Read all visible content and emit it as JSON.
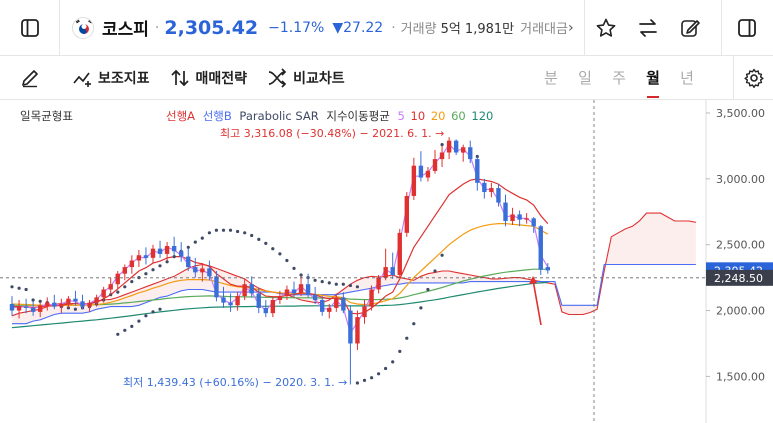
{
  "ticker": {
    "name": "코스피",
    "price": "2,305.42",
    "change_pct": "−1.17%",
    "change_val": "▼27.22",
    "volume_label": "거래량",
    "volume_value": "5억 1,981만",
    "amount_label": "거래대금"
  },
  "toolbar": {
    "indicators_label": "보조지표",
    "strategy_label": "매매전략",
    "compare_label": "비교차트",
    "periods": [
      "분",
      "일",
      "주",
      "월",
      "년"
    ],
    "active_period": "월"
  },
  "legend": {
    "ichimoku": "일목균형표",
    "span_a": "선행A",
    "span_b": "선행B",
    "psar": "Parabolic SAR",
    "ema_label": "지수이동평균",
    "ema_periods": [
      "5",
      "10",
      "20",
      "60",
      "120"
    ]
  },
  "colors": {
    "up": "#e03131",
    "down": "#3b6fd8",
    "ema5": "#c77dff",
    "ema10": "#e03131",
    "ema20": "#f39c12",
    "ema60": "#5aab5a",
    "ema120": "#1f8a70",
    "span_a": "#e03131",
    "span_b": "#4c6ef5",
    "psar": "#3f4a66"
  },
  "chart_data": {
    "type": "line",
    "title": "코스피",
    "ylim": [
      1300,
      3600
    ],
    "y_ticks": [
      "3,500.00",
      "3,000.00",
      "2,500.00",
      "2,000.00",
      "1,500.00"
    ],
    "y_tick_values": [
      3500,
      3000,
      2500,
      2000,
      1500
    ],
    "current_price": 2305.42,
    "current_price_label": "2,305.42",
    "crosshair_value": 2248.5,
    "crosshair_label": "2,248.50",
    "annotations": {
      "high": "최고 3,316.08 (−30.48%) − 2021. 6. 1. →",
      "low": "최저 1,439.43 (+60.16%) − 2020. 3. 1. →"
    },
    "candles": [
      {
        "o": 2050,
        "h": 2110,
        "l": 1960,
        "c": 2000
      },
      {
        "o": 2000,
        "h": 2080,
        "l": 1940,
        "c": 2030
      },
      {
        "o": 2030,
        "h": 2090,
        "l": 1980,
        "c": 2020
      },
      {
        "o": 2020,
        "h": 2070,
        "l": 1960,
        "c": 1990
      },
      {
        "o": 1990,
        "h": 2060,
        "l": 1950,
        "c": 2040
      },
      {
        "o": 2040,
        "h": 2100,
        "l": 2000,
        "c": 2060
      },
      {
        "o": 2060,
        "h": 2120,
        "l": 2010,
        "c": 2030
      },
      {
        "o": 2030,
        "h": 2090,
        "l": 1980,
        "c": 2050
      },
      {
        "o": 2050,
        "h": 2110,
        "l": 2020,
        "c": 2090
      },
      {
        "o": 2090,
        "h": 2150,
        "l": 2040,
        "c": 2070
      },
      {
        "o": 2070,
        "h": 2120,
        "l": 2010,
        "c": 2030
      },
      {
        "o": 2030,
        "h": 2080,
        "l": 1990,
        "c": 2060
      },
      {
        "o": 2060,
        "h": 2120,
        "l": 2030,
        "c": 2100
      },
      {
        "o": 2100,
        "h": 2180,
        "l": 2060,
        "c": 2160
      },
      {
        "o": 2160,
        "h": 2250,
        "l": 2120,
        "c": 2200
      },
      {
        "o": 2200,
        "h": 2300,
        "l": 2160,
        "c": 2280
      },
      {
        "o": 2280,
        "h": 2350,
        "l": 2230,
        "c": 2330
      },
      {
        "o": 2330,
        "h": 2420,
        "l": 2280,
        "c": 2380
      },
      {
        "o": 2380,
        "h": 2460,
        "l": 2330,
        "c": 2420
      },
      {
        "o": 2420,
        "h": 2480,
        "l": 2350,
        "c": 2400
      },
      {
        "o": 2400,
        "h": 2500,
        "l": 2360,
        "c": 2470
      },
      {
        "o": 2470,
        "h": 2530,
        "l": 2400,
        "c": 2430
      },
      {
        "o": 2430,
        "h": 2520,
        "l": 2380,
        "c": 2490
      },
      {
        "o": 2490,
        "h": 2560,
        "l": 2420,
        "c": 2450
      },
      {
        "o": 2450,
        "h": 2520,
        "l": 2370,
        "c": 2410
      },
      {
        "o": 2410,
        "h": 2470,
        "l": 2300,
        "c": 2330
      },
      {
        "o": 2330,
        "h": 2400,
        "l": 2250,
        "c": 2290
      },
      {
        "o": 2290,
        "h": 2360,
        "l": 2220,
        "c": 2320
      },
      {
        "o": 2320,
        "h": 2380,
        "l": 2230,
        "c": 2260
      },
      {
        "o": 2260,
        "h": 2300,
        "l": 2070,
        "c": 2100
      },
      {
        "o": 2100,
        "h": 2180,
        "l": 2020,
        "c": 2060
      },
      {
        "o": 2060,
        "h": 2130,
        "l": 1990,
        "c": 2040
      },
      {
        "o": 2040,
        "h": 2140,
        "l": 2000,
        "c": 2110
      },
      {
        "o": 2110,
        "h": 2240,
        "l": 2080,
        "c": 2200
      },
      {
        "o": 2200,
        "h": 2260,
        "l": 2100,
        "c": 2130
      },
      {
        "o": 2130,
        "h": 2170,
        "l": 1980,
        "c": 2020
      },
      {
        "o": 2020,
        "h": 2080,
        "l": 1950,
        "c": 1980
      },
      {
        "o": 1980,
        "h": 2100,
        "l": 1950,
        "c": 2080
      },
      {
        "o": 2080,
        "h": 2150,
        "l": 2050,
        "c": 2110
      },
      {
        "o": 2110,
        "h": 2190,
        "l": 2080,
        "c": 2160
      },
      {
        "o": 2160,
        "h": 2220,
        "l": 2100,
        "c": 2130
      },
      {
        "o": 2130,
        "h": 2260,
        "l": 2110,
        "c": 2200
      },
      {
        "o": 2200,
        "h": 2280,
        "l": 2100,
        "c": 2120
      },
      {
        "o": 2120,
        "h": 2180,
        "l": 2050,
        "c": 2080
      },
      {
        "o": 2080,
        "h": 2110,
        "l": 1960,
        "c": 1990
      },
      {
        "o": 1990,
        "h": 2050,
        "l": 1940,
        "c": 2020
      },
      {
        "o": 2020,
        "h": 2130,
        "l": 1990,
        "c": 2100
      },
      {
        "o": 2100,
        "h": 2140,
        "l": 1980,
        "c": 2000
      },
      {
        "o": 2000,
        "h": 2040,
        "l": 1439,
        "c": 1750
      },
      {
        "o": 1750,
        "h": 2000,
        "l": 1700,
        "c": 1950
      },
      {
        "o": 1950,
        "h": 2080,
        "l": 1900,
        "c": 2030
      },
      {
        "o": 2030,
        "h": 2190,
        "l": 2000,
        "c": 2160
      },
      {
        "o": 2160,
        "h": 2270,
        "l": 2130,
        "c": 2250
      },
      {
        "o": 2250,
        "h": 2470,
        "l": 2230,
        "c": 2330
      },
      {
        "o": 2330,
        "h": 2440,
        "l": 2240,
        "c": 2270
      },
      {
        "o": 2270,
        "h": 2620,
        "l": 2250,
        "c": 2590
      },
      {
        "o": 2590,
        "h": 2900,
        "l": 2560,
        "c": 2870
      },
      {
        "o": 2870,
        "h": 3160,
        "l": 2840,
        "c": 3100
      },
      {
        "o": 3100,
        "h": 3210,
        "l": 2980,
        "c": 3010
      },
      {
        "o": 3010,
        "h": 3090,
        "l": 2980,
        "c": 3060
      },
      {
        "o": 3060,
        "h": 3220,
        "l": 3040,
        "c": 3150
      },
      {
        "o": 3150,
        "h": 3250,
        "l": 3090,
        "c": 3200
      },
      {
        "o": 3200,
        "h": 3316,
        "l": 3150,
        "c": 3290
      },
      {
        "o": 3290,
        "h": 3300,
        "l": 3180,
        "c": 3200
      },
      {
        "o": 3200,
        "h": 3260,
        "l": 3130,
        "c": 3240
      },
      {
        "o": 3240,
        "h": 3290,
        "l": 3120,
        "c": 3150
      },
      {
        "o": 3150,
        "h": 3170,
        "l": 2910,
        "c": 2970
      },
      {
        "o": 2970,
        "h": 3000,
        "l": 2850,
        "c": 2900
      },
      {
        "o": 2900,
        "h": 2970,
        "l": 2860,
        "c": 2930
      },
      {
        "o": 2930,
        "h": 2960,
        "l": 2790,
        "c": 2820
      },
      {
        "o": 2820,
        "h": 2880,
        "l": 2640,
        "c": 2680
      },
      {
        "o": 2680,
        "h": 2780,
        "l": 2650,
        "c": 2730
      },
      {
        "o": 2730,
        "h": 2760,
        "l": 2640,
        "c": 2690
      },
      {
        "o": 2690,
        "h": 2740,
        "l": 2660,
        "c": 2700
      },
      {
        "o": 2700,
        "h": 2710,
        "l": 2590,
        "c": 2640
      },
      {
        "o": 2640,
        "h": 2650,
        "l": 2270,
        "c": 2310
      },
      {
        "o": 2330,
        "h": 2360,
        "l": 2280,
        "c": 2305
      }
    ],
    "psar_above_points": [
      [
        3,
        2080
      ],
      [
        4,
        2070
      ],
      [
        5,
        2060
      ],
      [
        6,
        2040
      ],
      [
        7,
        2030
      ],
      [
        8,
        2020
      ],
      [
        9,
        2010
      ],
      [
        10,
        2020
      ],
      [
        11,
        2030
      ],
      [
        12,
        2050
      ],
      [
        13,
        2080
      ],
      [
        14,
        2120
      ],
      [
        15,
        2140
      ],
      [
        16,
        2180
      ],
      [
        17,
        2220
      ],
      [
        18,
        2250
      ],
      [
        19,
        2280
      ],
      [
        20,
        2310
      ],
      [
        21,
        2340
      ],
      [
        22,
        2370
      ],
      [
        23,
        2410
      ],
      [
        24,
        2450
      ],
      [
        25,
        2480
      ],
      [
        26,
        2520
      ],
      [
        27,
        2550
      ],
      [
        28,
        2590
      ],
      [
        29,
        2610
      ],
      [
        30,
        2610
      ],
      [
        31,
        2610
      ],
      [
        32,
        2600
      ],
      [
        33,
        2590
      ],
      [
        34,
        2570
      ],
      [
        35,
        2540
      ],
      [
        36,
        2510
      ],
      [
        37,
        2470
      ],
      [
        38,
        2430
      ],
      [
        39,
        2380
      ],
      [
        40,
        2320
      ],
      [
        41,
        2270
      ],
      [
        42,
        2250
      ],
      [
        43,
        2230
      ],
      [
        44,
        2220
      ],
      [
        45,
        2210
      ],
      [
        46,
        2200
      ],
      [
        47,
        2200
      ],
      [
        48,
        2190
      ],
      [
        49,
        2180
      ],
      [
        61,
        3260
      ],
      [
        62,
        3250
      ],
      [
        63,
        3230
      ],
      [
        64,
        3210
      ],
      [
        65,
        3190
      ],
      [
        66,
        3170
      ]
    ],
    "psar_below_points": [
      [
        0,
        2180
      ],
      [
        1,
        2170
      ],
      [
        2,
        2160
      ],
      [
        15,
        1820
      ],
      [
        16,
        1850
      ],
      [
        17,
        1880
      ],
      [
        18,
        1920
      ],
      [
        19,
        1960
      ],
      [
        20,
        1990
      ],
      [
        21,
        2010
      ],
      [
        49,
        1450
      ],
      [
        50,
        1470
      ],
      [
        51,
        1490
      ],
      [
        52,
        1520
      ],
      [
        53,
        1560
      ],
      [
        54,
        1610
      ],
      [
        55,
        1690
      ],
      [
        56,
        1790
      ],
      [
        57,
        1900
      ],
      [
        58,
        2020
      ],
      [
        59,
        2160
      ],
      [
        60,
        2300
      ],
      [
        61,
        2420
      ]
    ],
    "ema5": [
      2020,
      2025,
      2030,
      2015,
      2030,
      2050,
      2040,
      2050,
      2075,
      2070,
      2040,
      2055,
      2085,
      2140,
      2185,
      2260,
      2310,
      2360,
      2405,
      2400,
      2450,
      2440,
      2480,
      2460,
      2420,
      2350,
      2300,
      2310,
      2275,
      2130,
      2080,
      2055,
      2095,
      2175,
      2140,
      2050,
      2000,
      2060,
      2100,
      2145,
      2135,
      2185,
      2130,
      2090,
      2010,
      2015,
      2080,
      2020,
      1830,
      1910,
      2000,
      2120,
      2220,
      2310,
      2280,
      2520,
      2790,
      3020,
      3020,
      3050,
      3120,
      3180,
      3260,
      3210,
      3230,
      3170,
      3010,
      2920,
      2920,
      2840,
      2710,
      2720,
      2700,
      2700,
      2660,
      2420,
      2330
    ],
    "ema10": [
      2030,
      2030,
      2030,
      2025,
      2028,
      2035,
      2035,
      2040,
      2050,
      2055,
      2050,
      2052,
      2062,
      2090,
      2120,
      2165,
      2210,
      2255,
      2300,
      2325,
      2360,
      2375,
      2400,
      2410,
      2410,
      2390,
      2365,
      2355,
      2335,
      2280,
      2240,
      2200,
      2185,
      2185,
      2175,
      2140,
      2110,
      2105,
      2105,
      2115,
      2120,
      2135,
      2130,
      2120,
      2100,
      2090,
      2095,
      2080,
      1980,
      1975,
      1985,
      2020,
      2060,
      2110,
      2140,
      2240,
      2360,
      2480,
      2560,
      2640,
      2720,
      2800,
      2880,
      2920,
      2960,
      2990,
      3000,
      2990,
      2980,
      2960,
      2920,
      2890,
      2860,
      2840,
      2800,
      2720,
      2660
    ],
    "ema20": [
      2050,
      2048,
      2046,
      2043,
      2041,
      2040,
      2039,
      2039,
      2041,
      2042,
      2041,
      2042,
      2045,
      2052,
      2063,
      2078,
      2096,
      2114,
      2135,
      2150,
      2170,
      2185,
      2205,
      2220,
      2230,
      2235,
      2235,
      2235,
      2232,
      2220,
      2205,
      2190,
      2180,
      2175,
      2170,
      2160,
      2148,
      2140,
      2135,
      2132,
      2130,
      2130,
      2128,
      2124,
      2115,
      2108,
      2105,
      2098,
      2060,
      2050,
      2045,
      2050,
      2060,
      2075,
      2090,
      2130,
      2190,
      2250,
      2300,
      2350,
      2400,
      2450,
      2500,
      2540,
      2580,
      2610,
      2630,
      2645,
      2655,
      2660,
      2660,
      2655,
      2650,
      2645,
      2640,
      2610,
      2580
    ],
    "ema60": [
      2040,
      2040,
      2040,
      2040,
      2040,
      2040,
      2040,
      2040,
      2041,
      2042,
      2042,
      2043,
      2044,
      2046,
      2049,
      2053,
      2058,
      2063,
      2069,
      2074,
      2080,
      2085,
      2092,
      2097,
      2102,
      2106,
      2108,
      2110,
      2111,
      2110,
      2108,
      2106,
      2105,
      2104,
      2103,
      2102,
      2100,
      2099,
      2098,
      2098,
      2097,
      2097,
      2097,
      2096,
      2095,
      2094,
      2094,
      2093,
      2087,
      2085,
      2083,
      2083,
      2084,
      2086,
      2088,
      2095,
      2106,
      2120,
      2133,
      2146,
      2160,
      2175,
      2192,
      2208,
      2224,
      2238,
      2250,
      2262,
      2273,
      2283,
      2291,
      2297,
      2303,
      2309,
      2314,
      2314,
      2313
    ],
    "ema120": [
      1870,
      1875,
      1880,
      1885,
      1890,
      1895,
      1900,
      1905,
      1910,
      1915,
      1920,
      1925,
      1930,
      1936,
      1942,
      1948,
      1955,
      1962,
      1969,
      1976,
      1983,
      1990,
      1996,
      2002,
      2008,
      2013,
      2017,
      2021,
      2024,
      2026,
      2027,
      2028,
      2029,
      2030,
      2031,
      2032,
      2032,
      2033,
      2033,
      2034,
      2034,
      2035,
      2035,
      2036,
      2036,
      2036,
      2037,
      2037,
      2035,
      2035,
      2035,
      2036,
      2037,
      2039,
      2041,
      2045,
      2051,
      2058,
      2066,
      2074,
      2082,
      2091,
      2101,
      2111,
      2121,
      2131,
      2141,
      2150,
      2159,
      2168,
      2176,
      2184,
      2192,
      2199,
      2206,
      2210,
      2214
    ],
    "span_a": [
      1960,
      1980,
      1990,
      2000,
      2010,
      2030,
      2045,
      2055,
      2050,
      2040,
      2045,
      2055,
      2070,
      2080,
      2085,
      2100,
      2120,
      2140,
      2160,
      2180,
      2200,
      2220,
      2240,
      2260,
      2290,
      2320,
      2340,
      2350,
      2340,
      2320,
      2300,
      2280,
      2260,
      2240,
      2200,
      2170,
      2150,
      2140,
      2130,
      2120,
      2100,
      2080,
      2070,
      2060,
      2060,
      2080,
      2120,
      2160,
      2200,
      2230,
      2250,
      2260,
      2255,
      2260,
      2270,
      2250,
      2240,
      2230,
      2260,
      2280,
      2290,
      2300,
      2300,
      2290,
      2280,
      2270,
      2260,
      2250,
      2240,
      2240,
      2245,
      2250,
      2250,
      2240,
      2230,
      2220,
      2210,
      2200,
      1990,
      1970,
      1970,
      1970,
      1985,
      2010,
      2300,
      2560,
      2590,
      2620,
      2640,
      2680,
      2740,
      2740,
      2740,
      2710,
      2680,
      2680,
      2680,
      2670
    ],
    "span_b": [
      1900,
      1900,
      1900,
      1920,
      1930,
      1950,
      1970,
      1980,
      1980,
      1980,
      1980,
      1990,
      2010,
      2020,
      2030,
      2030,
      2030,
      2030,
      2040,
      2060,
      2080,
      2100,
      2110,
      2130,
      2150,
      2160,
      2160,
      2160,
      2150,
      2140,
      2140,
      2140,
      2140,
      2140,
      2140,
      2140,
      2140,
      2140,
      2130,
      2120,
      2120,
      2120,
      2120,
      2120,
      2120,
      2120,
      2120,
      2130,
      2140,
      2150,
      2160,
      2170,
      2180,
      2190,
      2200,
      2200,
      2210,
      2210,
      2210,
      2210,
      2210,
      2210,
      2210,
      2210,
      2210,
      2220,
      2220,
      2220,
      2220,
      2220,
      2220,
      2220,
      2220,
      2220,
      2220,
      2220,
      2220,
      2220,
      2040,
      2040,
      2040,
      2040,
      2040,
      2040,
      2350,
      2350,
      2350,
      2350,
      2350,
      2350,
      2350,
      2350,
      2350,
      2350,
      2350,
      2350,
      2350,
      2350
    ]
  }
}
